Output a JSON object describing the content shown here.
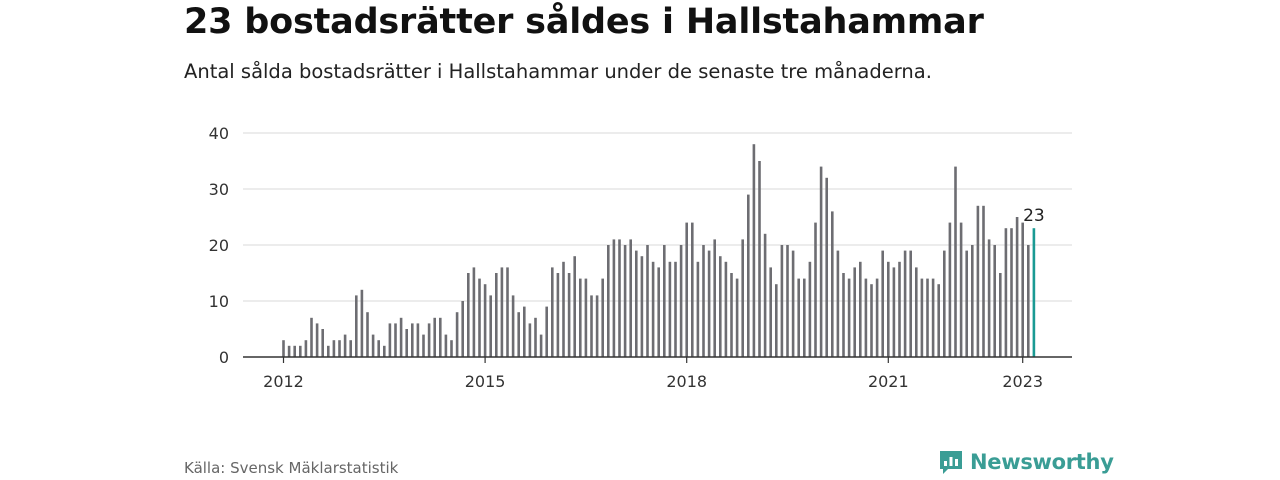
{
  "title": "23 bostadsrätter såldes i Hallstahammar",
  "subtitle": "Antal sålda bostadsrätter i Hallstahammar under de senaste tre månaderna.",
  "source": "Källa: Svensk Mäklarstatistik",
  "brand": {
    "name": "Newsworthy",
    "icon": "newsworthy-logo-icon",
    "color": "#3a9d95"
  },
  "colors": {
    "bar": "#6d6d72",
    "highlight": "#1a9a93",
    "grid": "#d9d9d9",
    "axis": "#333333"
  },
  "chart_data": {
    "type": "bar",
    "ylim": [
      0,
      40
    ],
    "yticks": [
      0,
      10,
      20,
      30,
      40
    ],
    "grid": true,
    "xtick_labels": [
      "2012",
      "2015",
      "2018",
      "2021",
      "2023"
    ],
    "xtick_positions": [
      0,
      36,
      72,
      108,
      132
    ],
    "start_period": "2012-01",
    "values": [
      3,
      2,
      2,
      2,
      3,
      7,
      6,
      5,
      2,
      3,
      3,
      4,
      3,
      11,
      12,
      8,
      4,
      3,
      2,
      6,
      6,
      7,
      5,
      6,
      6,
      4,
      6,
      7,
      7,
      4,
      3,
      8,
      10,
      15,
      16,
      14,
      13,
      11,
      15,
      16,
      16,
      11,
      8,
      9,
      6,
      7,
      4,
      9,
      16,
      15,
      17,
      15,
      18,
      14,
      14,
      11,
      11,
      14,
      20,
      21,
      21,
      20,
      21,
      19,
      18,
      20,
      17,
      16,
      20,
      17,
      17,
      20,
      24,
      24,
      17,
      20,
      19,
      21,
      18,
      17,
      15,
      14,
      21,
      29,
      38,
      35,
      22,
      16,
      13,
      20,
      20,
      19,
      14,
      14,
      17,
      24,
      34,
      32,
      26,
      19,
      15,
      14,
      16,
      17,
      14,
      13,
      14,
      19,
      17,
      16,
      17,
      19,
      19,
      16,
      14,
      14,
      14,
      13,
      19,
      24,
      34,
      24,
      19,
      20,
      27,
      27,
      21,
      20,
      15,
      23,
      23,
      25,
      24,
      20,
      23
    ],
    "highlight_index": 134,
    "highlight_label": "23"
  }
}
